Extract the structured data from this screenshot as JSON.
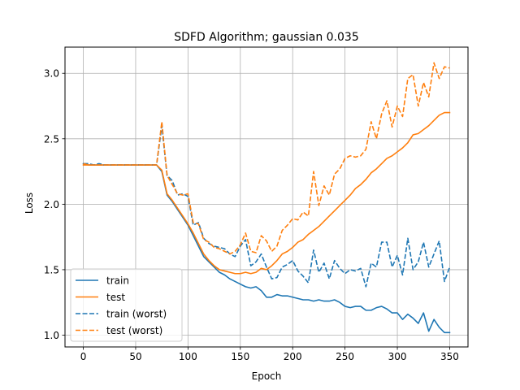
{
  "chart_data": {
    "type": "line",
    "title": "SDFD Algorithm; gaussian 0.035",
    "xlabel": "Epoch",
    "ylabel": "Loss",
    "xlim": [
      -17.5,
      367.5
    ],
    "ylim": [
      0.91,
      3.2
    ],
    "xticks": [
      0,
      50,
      100,
      150,
      200,
      250,
      300,
      350
    ],
    "yticks": [
      1.0,
      1.5,
      2.0,
      2.5,
      3.0
    ],
    "xtick_labels": [
      "0",
      "50",
      "100",
      "150",
      "200",
      "250",
      "300",
      "350"
    ],
    "ytick_labels": [
      "1.0",
      "1.5",
      "2.0",
      "2.5",
      "3.0"
    ],
    "grid": true,
    "legend_position": "lower-left",
    "series": [
      {
        "name": "train",
        "color": "#1f77b4",
        "style": "solid",
        "x": [
          0,
          5,
          10,
          15,
          20,
          25,
          30,
          35,
          40,
          45,
          50,
          55,
          60,
          65,
          70,
          75,
          80,
          85,
          90,
          95,
          100,
          105,
          110,
          115,
          120,
          125,
          130,
          135,
          140,
          145,
          150,
          155,
          160,
          165,
          170,
          175,
          180,
          185,
          190,
          195,
          200,
          205,
          210,
          215,
          220,
          225,
          230,
          235,
          240,
          245,
          250,
          255,
          260,
          265,
          270,
          275,
          280,
          285,
          290,
          295,
          300,
          305,
          310,
          315,
          320,
          325,
          330,
          335,
          340,
          345,
          350
        ],
        "y": [
          2.31,
          2.3,
          2.3,
          2.3,
          2.3,
          2.3,
          2.3,
          2.3,
          2.3,
          2.3,
          2.3,
          2.3,
          2.3,
          2.3,
          2.3,
          2.25,
          2.07,
          2.02,
          1.96,
          1.9,
          1.84,
          1.76,
          1.68,
          1.6,
          1.56,
          1.52,
          1.48,
          1.46,
          1.43,
          1.41,
          1.39,
          1.37,
          1.36,
          1.37,
          1.34,
          1.29,
          1.29,
          1.31,
          1.3,
          1.3,
          1.29,
          1.28,
          1.27,
          1.27,
          1.26,
          1.27,
          1.26,
          1.26,
          1.27,
          1.25,
          1.22,
          1.21,
          1.22,
          1.22,
          1.19,
          1.19,
          1.21,
          1.22,
          1.2,
          1.17,
          1.17,
          1.12,
          1.16,
          1.13,
          1.09,
          1.17,
          1.03,
          1.12,
          1.06,
          1.02,
          1.02
        ]
      },
      {
        "name": "test",
        "color": "#ff7f0e",
        "style": "solid",
        "x": [
          0,
          5,
          10,
          15,
          20,
          25,
          30,
          35,
          40,
          45,
          50,
          55,
          60,
          65,
          70,
          75,
          80,
          85,
          90,
          95,
          100,
          105,
          110,
          115,
          120,
          125,
          130,
          135,
          140,
          145,
          150,
          155,
          160,
          165,
          170,
          175,
          180,
          185,
          190,
          195,
          200,
          205,
          210,
          215,
          220,
          225,
          230,
          235,
          240,
          245,
          250,
          255,
          260,
          265,
          270,
          275,
          280,
          285,
          290,
          295,
          300,
          305,
          310,
          315,
          320,
          325,
          330,
          335,
          340,
          345,
          350
        ],
        "y": [
          2.3,
          2.3,
          2.3,
          2.3,
          2.3,
          2.3,
          2.3,
          2.3,
          2.3,
          2.3,
          2.3,
          2.3,
          2.3,
          2.3,
          2.3,
          2.26,
          2.08,
          2.03,
          1.97,
          1.91,
          1.85,
          1.78,
          1.7,
          1.62,
          1.57,
          1.53,
          1.5,
          1.49,
          1.48,
          1.47,
          1.47,
          1.48,
          1.47,
          1.48,
          1.51,
          1.5,
          1.53,
          1.57,
          1.62,
          1.64,
          1.67,
          1.71,
          1.73,
          1.77,
          1.8,
          1.83,
          1.87,
          1.91,
          1.95,
          1.99,
          2.03,
          2.07,
          2.12,
          2.15,
          2.19,
          2.24,
          2.27,
          2.31,
          2.35,
          2.37,
          2.4,
          2.43,
          2.47,
          2.53,
          2.54,
          2.57,
          2.6,
          2.64,
          2.68,
          2.7,
          2.7
        ]
      },
      {
        "name": "train (worst)",
        "color": "#1f77b4",
        "style": "dashed",
        "x": [
          0,
          5,
          10,
          15,
          20,
          25,
          30,
          35,
          40,
          45,
          50,
          55,
          60,
          65,
          70,
          75,
          80,
          85,
          90,
          95,
          100,
          105,
          110,
          115,
          120,
          125,
          130,
          135,
          140,
          145,
          150,
          155,
          160,
          165,
          170,
          175,
          180,
          185,
          190,
          195,
          200,
          205,
          210,
          215,
          220,
          225,
          230,
          235,
          240,
          245,
          250,
          255,
          260,
          265,
          270,
          275,
          280,
          285,
          290,
          295,
          300,
          305,
          310,
          315,
          320,
          325,
          330,
          335,
          340,
          345,
          350
        ],
        "y": [
          2.31,
          2.31,
          2.3,
          2.31,
          2.3,
          2.3,
          2.3,
          2.3,
          2.3,
          2.3,
          2.3,
          2.3,
          2.3,
          2.3,
          2.3,
          2.6,
          2.22,
          2.18,
          2.07,
          2.08,
          2.06,
          1.84,
          1.86,
          1.74,
          1.7,
          1.68,
          1.67,
          1.66,
          1.62,
          1.6,
          1.68,
          1.73,
          1.53,
          1.56,
          1.62,
          1.52,
          1.43,
          1.44,
          1.52,
          1.54,
          1.57,
          1.49,
          1.45,
          1.4,
          1.65,
          1.48,
          1.55,
          1.43,
          1.57,
          1.51,
          1.47,
          1.5,
          1.49,
          1.51,
          1.37,
          1.55,
          1.52,
          1.71,
          1.71,
          1.52,
          1.61,
          1.46,
          1.74,
          1.5,
          1.56,
          1.71,
          1.52,
          1.62,
          1.72,
          1.41,
          1.52
        ]
      },
      {
        "name": "test (worst)",
        "color": "#ff7f0e",
        "style": "dashed",
        "x": [
          0,
          5,
          10,
          15,
          20,
          25,
          30,
          35,
          40,
          45,
          50,
          55,
          60,
          65,
          70,
          75,
          80,
          85,
          90,
          95,
          100,
          105,
          110,
          115,
          120,
          125,
          130,
          135,
          140,
          145,
          150,
          155,
          160,
          165,
          170,
          175,
          180,
          185,
          190,
          195,
          200,
          205,
          210,
          215,
          220,
          225,
          230,
          235,
          240,
          245,
          250,
          255,
          260,
          265,
          270,
          275,
          280,
          285,
          290,
          295,
          300,
          305,
          310,
          315,
          320,
          325,
          330,
          335,
          340,
          345,
          350
        ],
        "y": [
          2.31,
          2.3,
          2.3,
          2.3,
          2.3,
          2.3,
          2.3,
          2.3,
          2.3,
          2.3,
          2.3,
          2.3,
          2.3,
          2.3,
          2.3,
          2.63,
          2.22,
          2.15,
          2.08,
          2.07,
          2.08,
          1.86,
          1.85,
          1.73,
          1.71,
          1.67,
          1.66,
          1.64,
          1.62,
          1.64,
          1.69,
          1.78,
          1.64,
          1.63,
          1.76,
          1.72,
          1.64,
          1.68,
          1.8,
          1.84,
          1.89,
          1.88,
          1.94,
          1.91,
          2.25,
          1.99,
          2.14,
          2.07,
          2.23,
          2.27,
          2.35,
          2.37,
          2.36,
          2.37,
          2.42,
          2.63,
          2.5,
          2.69,
          2.79,
          2.59,
          2.75,
          2.67,
          2.96,
          2.99,
          2.75,
          2.93,
          2.82,
          3.08,
          2.96,
          3.05,
          3.04
        ]
      }
    ]
  }
}
